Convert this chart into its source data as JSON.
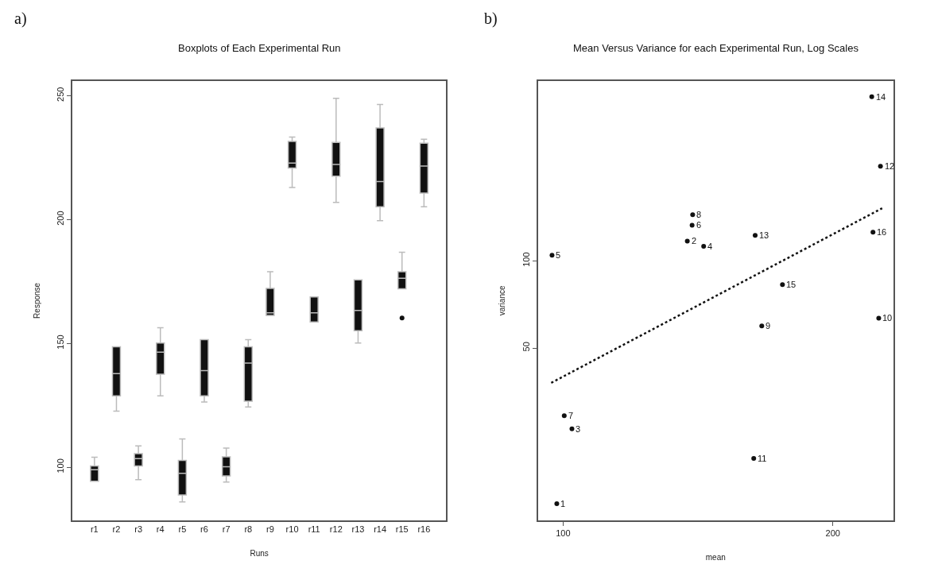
{
  "chart_data": [
    {
      "type": "box",
      "title": "Boxplots of Each Experimental Run",
      "xlabel": "Runs",
      "ylabel": "Response",
      "annotations": [
        "a)"
      ],
      "categories": [
        "r1",
        "r2",
        "r3",
        "r4",
        "r5",
        "r6",
        "r7",
        "r8",
        "r9",
        "r10",
        "r11",
        "r12",
        "r13",
        "r14",
        "r15",
        "r16"
      ],
      "ylim": [
        78.5,
        256
      ],
      "yticks": [
        100,
        150,
        200,
        250
      ],
      "series": [
        {
          "color": "#111111",
          "boxes": [
            {
              "low": 94.3,
              "q1": 94.3,
              "median": 99,
              "q3": 100.5,
              "high": 104
            },
            {
              "low": 122.6,
              "q1": 128.8,
              "median": 137.8,
              "q3": 148.6,
              "high": 148.6
            },
            {
              "low": 95,
              "q1": 100.5,
              "median": 103.5,
              "q3": 105.5,
              "high": 108.6
            },
            {
              "low": 128.8,
              "q1": 137.5,
              "median": 146.4,
              "q3": 150.1,
              "high": 156.3
            },
            {
              "low": 86,
              "q1": 88.8,
              "median": 97.5,
              "q3": 102.7,
              "high": 111.4
            },
            {
              "low": 126.3,
              "q1": 128.8,
              "median": 139,
              "q3": 151.5,
              "high": 151.5
            },
            {
              "low": 94,
              "q1": 96.5,
              "median": 100.2,
              "q3": 104.2,
              "high": 107.7
            },
            {
              "low": 124.3,
              "q1": 126.6,
              "median": 142,
              "q3": 148.6,
              "high": 151.5
            },
            {
              "low": 161.3,
              "q1": 161.3,
              "median": 162.3,
              "q3": 172.2,
              "high": 178.9
            },
            {
              "low": 212.9,
              "q1": 220.8,
              "median": 222.8,
              "q3": 231.5,
              "high": 233.3
            },
            {
              "low": 158.6,
              "q1": 158.6,
              "median": 162.3,
              "q3": 168.7,
              "high": 168.7
            },
            {
              "low": 206.9,
              "q1": 217.5,
              "median": 222.2,
              "q3": 231.1,
              "high": 248.9
            },
            {
              "low": 150.1,
              "q1": 155.1,
              "median": 163.3,
              "q3": 175.6,
              "high": 175.6
            },
            {
              "low": 199.5,
              "q1": 205.1,
              "median": 215.3,
              "q3": 237,
              "high": 246.4
            },
            {
              "low": 172,
              "q1": 172,
              "median": 176.3,
              "q3": 178.9,
              "high": 186.8,
              "outliers": [
                160.2
              ]
            },
            {
              "low": 205.1,
              "q1": 210.7,
              "median": 221.6,
              "q3": 230.8,
              "high": 232.4
            }
          ]
        }
      ]
    },
    {
      "type": "scatter",
      "title": "Mean Versus Variance for each Experimental Run, Log Scales",
      "xlabel": "mean",
      "ylabel": "variance",
      "annotations": [
        "b)",
        {
          "text": "1",
          "x": 98.4,
          "y": 14.5
        },
        {
          "text": "2",
          "x": 137.6,
          "y": 116.9
        },
        {
          "text": "3",
          "x": 102.3,
          "y": 26.3
        },
        {
          "text": "4",
          "x": 143.5,
          "y": 112.1
        },
        {
          "text": "5",
          "x": 97.2,
          "y": 104.5
        },
        {
          "text": "6",
          "x": 139.3,
          "y": 132.7
        },
        {
          "text": "7",
          "x": 100.3,
          "y": 29.2
        },
        {
          "text": "8",
          "x": 139.5,
          "y": 144.2
        },
        {
          "text": "9",
          "x": 166.6,
          "y": 59.6
        },
        {
          "text": "10",
          "x": 225,
          "y": 63.4
        },
        {
          "text": "11",
          "x": 163.2,
          "y": 20.8
        },
        {
          "text": "12",
          "x": 226,
          "y": 212
        },
        {
          "text": "13",
          "x": 163.8,
          "y": 122.4
        },
        {
          "text": "14",
          "x": 221,
          "y": 368
        },
        {
          "text": "15",
          "x": 175.7,
          "y": 82.7
        },
        {
          "text": "16",
          "x": 221.7,
          "y": 125.5
        }
      ],
      "log": "xy",
      "xlim": [
        93.8,
        233.5
      ],
      "xticks": [
        100,
        200
      ],
      "ylim": [
        12.7,
        418
      ],
      "yticks": [
        50,
        100
      ],
      "series": [
        {
          "type": "scatter",
          "color": "#111111",
          "marker": "circle",
          "x": [
            98.4,
            137.6,
            102.3,
            143.5,
            97.2,
            139.3,
            100.3,
            139.5,
            166.6,
            225,
            163.2,
            226,
            163.8,
            221,
            175.7,
            221.7
          ],
          "values": [
            14.5,
            116.9,
            26.3,
            112.1,
            104.5,
            132.7,
            29.2,
            144.2,
            59.6,
            63.4,
            20.8,
            212,
            122.4,
            368,
            82.7,
            125.5
          ]
        },
        {
          "type": "line",
          "color": "#111111",
          "line_style": "dotted",
          "marker": "none",
          "x": [
            97,
            227
          ],
          "values": [
            37.9,
            151.8
          ]
        }
      ]
    }
  ]
}
